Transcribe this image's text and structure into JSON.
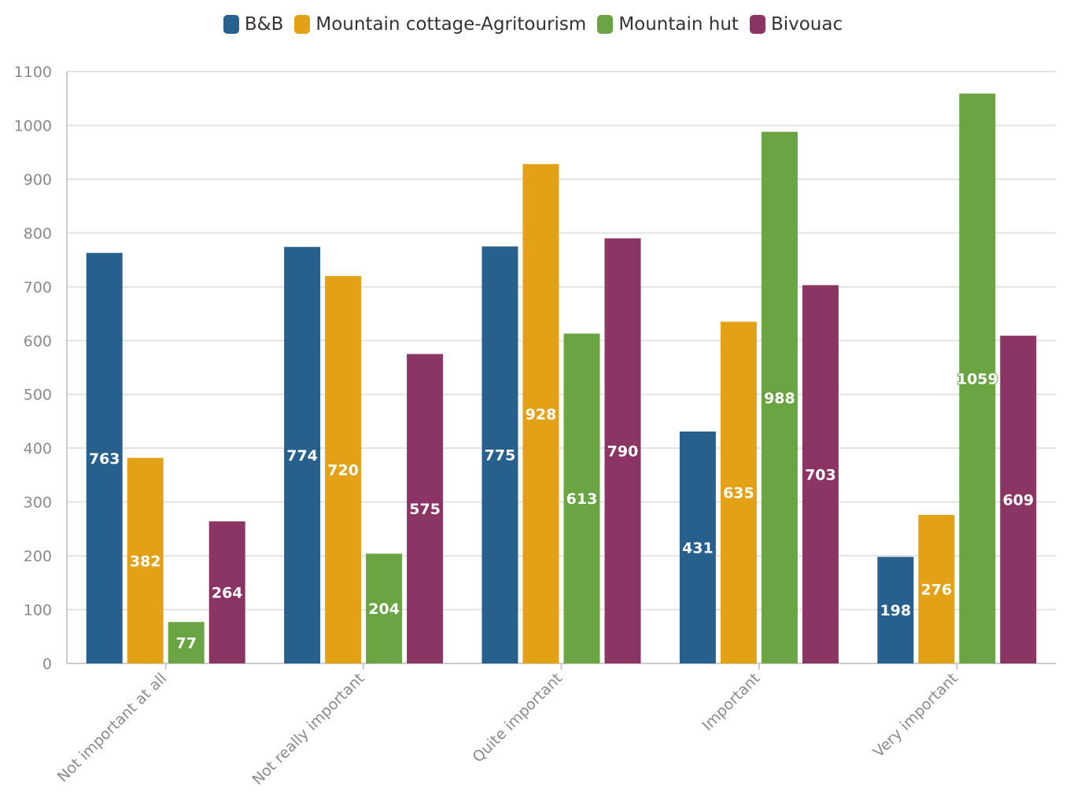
{
  "chart_data": {
    "type": "bar",
    "categories": [
      "Not important at all",
      "Not really important",
      "Quite important",
      "Important",
      "Very important"
    ],
    "series": [
      {
        "name": "B&B",
        "color": "#27608c",
        "values": [
          763,
          774,
          775,
          431,
          198
        ]
      },
      {
        "name": "Mountain cottage-Agritourism",
        "color": "#e3a117",
        "values": [
          382,
          720,
          928,
          635,
          276
        ]
      },
      {
        "name": "Mountain hut",
        "color": "#6aa443",
        "values": [
          77,
          204,
          613,
          988,
          1059
        ]
      },
      {
        "name": "Bivouac",
        "color": "#8b3564",
        "values": [
          264,
          575,
          790,
          703,
          609
        ]
      }
    ],
    "yticks": [
      "0",
      "100",
      "200",
      "300",
      "400",
      "500",
      "600",
      "700",
      "800",
      "900",
      "1000",
      "1100"
    ],
    "ylim": [
      0,
      1100
    ],
    "grid": true,
    "legend_position": "top-center",
    "data_labels": true
  }
}
